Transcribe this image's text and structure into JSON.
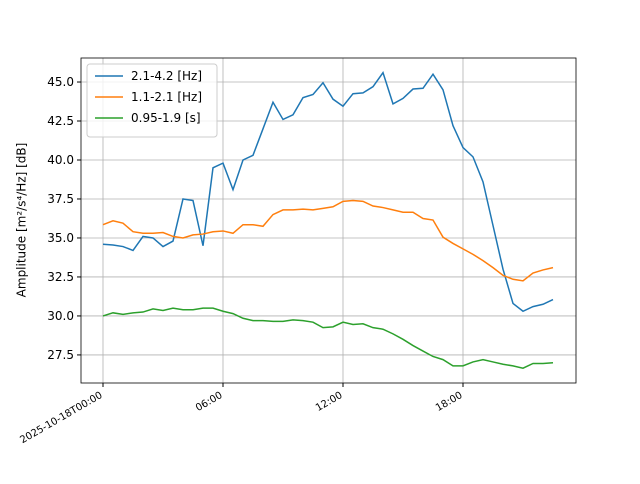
{
  "chart_data": {
    "type": "line",
    "ylabel": "Amplitude [m²/s⁴/Hz] [dB]",
    "x": [
      0,
      0.5,
      1,
      1.5,
      2,
      2.5,
      3,
      3.5,
      4,
      4.5,
      5,
      5.5,
      6,
      6.5,
      7,
      7.5,
      8,
      8.5,
      9,
      9.5,
      10,
      10.5,
      11,
      11.5,
      12,
      12.5,
      13,
      13.5,
      14,
      14.5,
      15,
      15.5,
      16,
      16.5,
      17,
      17.5,
      18,
      18.5,
      19,
      19.5,
      20,
      20.5,
      21,
      21.5,
      22,
      22.5
    ],
    "series": [
      {
        "name": "2.1-4.2 [Hz]",
        "color": "#1f77b4",
        "values": [
          34.6,
          34.55,
          34.45,
          34.2,
          35.1,
          35.0,
          34.45,
          34.8,
          37.5,
          37.4,
          34.5,
          39.5,
          39.8,
          38.1,
          40.0,
          40.3,
          42.0,
          43.7,
          42.6,
          42.9,
          44.0,
          44.2,
          44.95,
          43.9,
          43.45,
          44.25,
          44.3,
          44.7,
          45.6,
          43.6,
          43.95,
          44.55,
          44.6,
          45.5,
          44.5,
          42.2,
          40.8,
          40.2,
          38.6,
          35.8,
          33.0,
          30.8,
          30.3,
          30.6,
          30.75,
          31.05
        ]
      },
      {
        "name": "1.1-2.1 [Hz]",
        "color": "#ff7f0e",
        "values": [
          35.85,
          36.1,
          35.95,
          35.4,
          35.3,
          35.3,
          35.35,
          35.1,
          35.0,
          35.2,
          35.25,
          35.4,
          35.45,
          35.3,
          35.85,
          35.85,
          35.75,
          36.5,
          36.8,
          36.8,
          36.85,
          36.8,
          36.9,
          37.0,
          37.35,
          37.4,
          37.35,
          37.05,
          36.95,
          36.8,
          36.65,
          36.65,
          36.25,
          36.15,
          35.05,
          34.65,
          34.3,
          33.95,
          33.55,
          33.1,
          32.6,
          32.35,
          32.25,
          32.75,
          32.95,
          33.1
        ]
      },
      {
        "name": "0.95-1.9 [s]",
        "color": "#2ca02c",
        "values": [
          30.0,
          30.2,
          30.1,
          30.2,
          30.25,
          30.45,
          30.35,
          30.5,
          30.4,
          30.4,
          30.5,
          30.5,
          30.3,
          30.15,
          29.85,
          29.7,
          29.7,
          29.65,
          29.65,
          29.75,
          29.7,
          29.6,
          29.25,
          29.3,
          29.6,
          29.45,
          29.5,
          29.25,
          29.15,
          28.85,
          28.5,
          28.1,
          27.75,
          27.4,
          27.2,
          26.8,
          26.8,
          27.05,
          27.2,
          27.05,
          26.9,
          26.8,
          26.65,
          26.95,
          26.95,
          27.0
        ]
      }
    ],
    "xlim": [
      -1.1,
      23.65
    ],
    "xticks": [
      {
        "value": 0,
        "label": "2025-10-18T00:00"
      },
      {
        "value": 6,
        "label": "06:00"
      },
      {
        "value": 12,
        "label": "12:00"
      },
      {
        "value": 18,
        "label": "18:00"
      }
    ],
    "ylim": [
      25.7,
      46.54
    ],
    "yticks": [
      27.5,
      {
        "value": 30,
        "label": "30.0"
      },
      32.5,
      {
        "value": 35,
        "label": "35.0"
      },
      37.5,
      {
        "value": 40,
        "label": "40.0"
      },
      42.5,
      {
        "value": 45,
        "label": "45.0"
      }
    ],
    "grid": true,
    "legend": "upper-left"
  }
}
